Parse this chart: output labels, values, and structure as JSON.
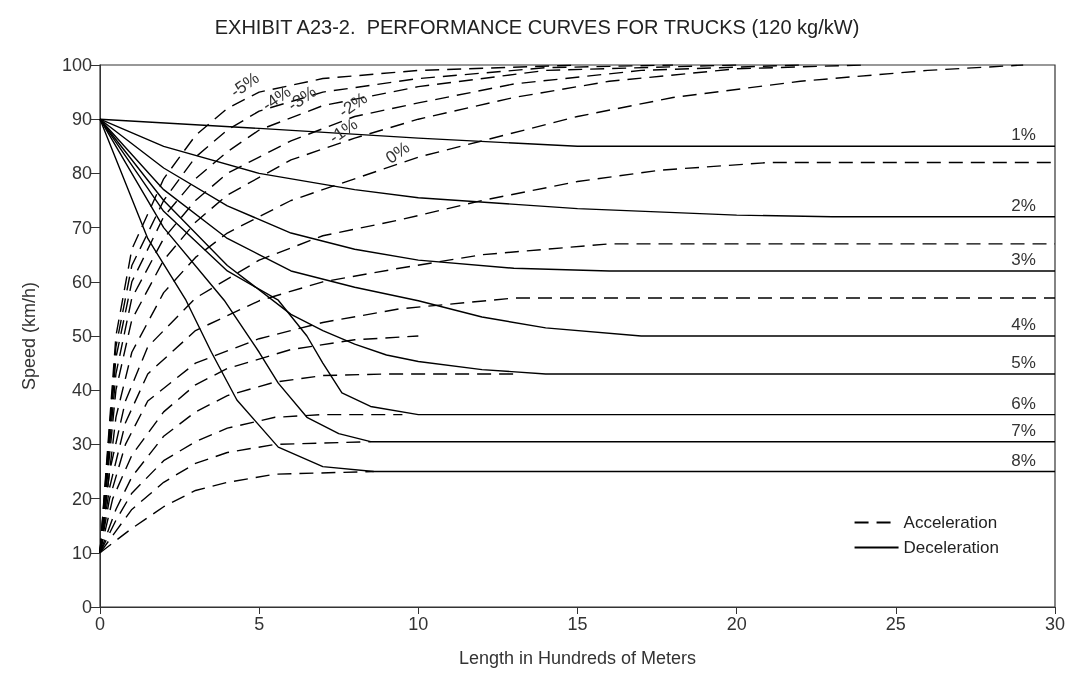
{
  "chart_data": {
    "type": "line",
    "title": "EXHIBIT A23-2.  PERFORMANCE CURVES FOR TRUCKS (120 kg/kW)",
    "xlabel": "Length in Hundreds of Meters",
    "ylabel": "Speed (km/h)",
    "xlim": [
      0,
      30
    ],
    "xticks": [
      0,
      5,
      10,
      15,
      20,
      25,
      30
    ],
    "ylim": [
      0,
      100
    ],
    "yticks": [
      0,
      10,
      20,
      30,
      40,
      50,
      60,
      70,
      80,
      90,
      100
    ],
    "grid": false,
    "legend": "bottom right",
    "marker": "none",
    "series": [
      {
        "name": "Acceleration",
        "color": "#000000",
        "line_style": "dashed",
        "x": [
          0,
          0.5,
          1,
          2,
          3,
          4,
          5,
          7,
          10,
          15
        ],
        "values": [
          10,
          50,
          66,
          79,
          87,
          92,
          95,
          97.5,
          99,
          100
        ]
      },
      {
        "color": "#000000",
        "line_style": "dashed",
        "x": [
          0,
          0.5,
          1,
          2,
          3,
          4,
          5,
          7,
          10,
          14,
          18
        ],
        "values": [
          10,
          48,
          63,
          75,
          83,
          88,
          91.5,
          95,
          97.5,
          99.5,
          100
        ]
      },
      {
        "color": "#000000",
        "line_style": "dashed",
        "x": [
          0,
          0.5,
          1,
          2,
          3,
          4,
          5,
          7,
          10,
          14,
          20
        ],
        "values": [
          10,
          46,
          60,
          72,
          79,
          84,
          88,
          92.5,
          96,
          99,
          100
        ]
      },
      {
        "color": "#000000",
        "line_style": "dashed",
        "x": [
          0,
          0.5,
          1,
          2,
          3,
          4,
          6,
          8,
          10,
          13,
          17,
          22
        ],
        "values": [
          10,
          43,
          57,
          68,
          75,
          80,
          86,
          90.5,
          93,
          96.5,
          99,
          100
        ]
      },
      {
        "color": "#000000",
        "line_style": "dashed",
        "x": [
          0,
          0.5,
          1,
          2,
          3,
          4,
          6,
          8,
          10,
          13,
          16,
          20,
          24
        ],
        "values": [
          10,
          40,
          53,
          64,
          71,
          76,
          82.5,
          86.5,
          90,
          94,
          97,
          99.3,
          100
        ]
      },
      {
        "color": "#000000",
        "line_style": "dashed",
        "x": [
          0,
          0.2,
          0.5,
          1,
          2,
          3,
          4,
          6,
          8,
          10,
          12,
          15,
          18,
          22,
          26,
          29
        ],
        "values": [
          10,
          20,
          35,
          47,
          58,
          64.5,
          69,
          75,
          79,
          83,
          86,
          90.5,
          94,
          97,
          99,
          100
        ]
      },
      {
        "color": "#000000",
        "line_style": "dashed",
        "x": [
          0,
          0.3,
          0.8,
          1.5,
          3,
          5,
          7,
          9.4,
          12,
          15,
          17.6,
          21,
          30
        ],
        "values": [
          10,
          25,
          38,
          48,
          57,
          64,
          68.5,
          71.4,
          75,
          78.5,
          80.6,
          82,
          82
        ]
      },
      {
        "color": "#000000",
        "line_style": "dashed",
        "x": [
          0,
          0.3,
          0.8,
          1.5,
          3,
          5,
          7,
          9.4,
          12,
          16,
          30
        ],
        "values": [
          10,
          22,
          34,
          43,
          51,
          56.5,
          60,
          62.5,
          65,
          67,
          67
        ]
      },
      {
        "color": "#000000",
        "line_style": "dashed",
        "x": [
          0,
          0.3,
          0.8,
          1.5,
          3,
          5,
          7,
          9.4,
          13,
          30
        ],
        "values": [
          10,
          20,
          30,
          38,
          45,
          49.5,
          52.5,
          55,
          57,
          57
        ]
      },
      {
        "color": "#000000",
        "line_style": "dashed",
        "x": [
          0,
          0.4,
          1,
          2,
          3,
          4,
          6,
          8,
          10
        ],
        "values": [
          10,
          20,
          28,
          36,
          41,
          44,
          47.5,
          49.3,
          50
        ]
      },
      {
        "color": "#000000",
        "line_style": "dashed",
        "x": [
          0,
          0.5,
          1,
          2,
          3,
          4,
          5.5,
          7,
          9,
          13
        ],
        "values": [
          10,
          18,
          24,
          31.5,
          36,
          39,
          41.5,
          42.7,
          43,
          43
        ]
      },
      {
        "color": "#000000",
        "line_style": "dashed",
        "x": [
          0,
          0.5,
          1,
          2,
          3,
          4,
          5.5,
          7,
          9.5
        ],
        "values": [
          10,
          16,
          21,
          27,
          30.5,
          33,
          35,
          35.5,
          35.5
        ]
      },
      {
        "color": "#000000",
        "line_style": "dashed",
        "x": [
          0,
          0.5,
          1,
          2,
          3,
          4,
          5.5,
          8.5
        ],
        "values": [
          10,
          14,
          18,
          23,
          26.5,
          28.5,
          30,
          30.5
        ]
      },
      {
        "color": "#000000",
        "line_style": "dashed",
        "x": [
          0,
          1,
          2,
          3,
          4,
          5.5,
          8.6
        ],
        "values": [
          10,
          14.5,
          18.5,
          21.5,
          23,
          24.5,
          25
        ]
      },
      {
        "name": "Deceleration",
        "color": "#000000",
        "line_style": "solid",
        "x": [
          0,
          5,
          10,
          15,
          30
        ],
        "values": [
          90,
          88.3,
          86.5,
          85,
          85
        ]
      },
      {
        "color": "#000000",
        "line_style": "solid",
        "x": [
          0,
          2,
          5,
          8,
          10,
          15,
          20,
          23,
          30
        ],
        "values": [
          90,
          85,
          80,
          77,
          75.5,
          73.5,
          72.3,
          72,
          72
        ]
      },
      {
        "color": "#000000",
        "line_style": "solid",
        "x": [
          0,
          2,
          4,
          6,
          8,
          10,
          13,
          16,
          30
        ],
        "values": [
          90,
          81,
          74,
          69,
          66,
          64,
          62.5,
          62,
          62
        ]
      },
      {
        "color": "#000000",
        "line_style": "solid",
        "x": [
          0,
          2,
          4,
          6,
          8,
          10,
          12,
          14,
          17,
          30
        ],
        "values": [
          90,
          77,
          68,
          62,
          59,
          56.5,
          53.5,
          51.5,
          50,
          50
        ]
      },
      {
        "color": "#000000",
        "line_style": "solid",
        "x": [
          0,
          2,
          4,
          6,
          7,
          8,
          9,
          10,
          12,
          14,
          30
        ],
        "values": [
          90,
          75,
          63,
          54,
          51,
          48.5,
          46.5,
          45.3,
          43.8,
          43,
          43
        ]
      },
      {
        "color": "#000000",
        "line_style": "solid",
        "x": [
          0,
          2,
          4,
          5.6,
          6.5,
          7,
          7.6,
          8.5,
          10,
          30
        ],
        "values": [
          90,
          73,
          62,
          56.6,
          50,
          45,
          39.5,
          37,
          35.5,
          35.5
        ]
      },
      {
        "color": "#000000",
        "line_style": "solid",
        "x": [
          0,
          2,
          3.9,
          5,
          5.6,
          6.5,
          7.5,
          8.5,
          30
        ],
        "values": [
          90,
          70,
          56.6,
          47,
          41.3,
          35,
          32,
          30.5,
          30.5
        ]
      },
      {
        "color": "#000000",
        "line_style": "solid",
        "x": [
          0,
          1.5,
          2.7,
          3.5,
          4.3,
          5.6,
          7,
          8.6,
          30
        ],
        "values": [
          90,
          68,
          56.6,
          47,
          38.2,
          29.5,
          25.9,
          25,
          25
        ]
      }
    ],
    "annotations": [
      {
        "text": "-5%",
        "x": 4.7,
        "y": 94.5
      },
      {
        "text": "-4%",
        "x": 5.7,
        "y": 92
      },
      {
        "text": "-3%",
        "x": 6.5,
        "y": 92
      },
      {
        "text": "-2%",
        "x": 8.1,
        "y": 90.8
      },
      {
        "text": "-1%",
        "x": 7.8,
        "y": 86
      },
      {
        "text": "0%",
        "x": 9.5,
        "y": 82
      },
      {
        "text": "1%",
        "x": 29.4,
        "y": 85
      },
      {
        "text": "2%",
        "x": 29.4,
        "y": 72
      },
      {
        "text": "3%",
        "x": 29.4,
        "y": 62
      },
      {
        "text": "4%",
        "x": 29.4,
        "y": 50
      },
      {
        "text": "5%",
        "x": 29.4,
        "y": 43
      },
      {
        "text": "6%",
        "x": 29.4,
        "y": 35.5
      },
      {
        "text": "7%",
        "x": 29.4,
        "y": 30.5
      },
      {
        "text": "8%",
        "x": 29.4,
        "y": 25
      }
    ]
  }
}
